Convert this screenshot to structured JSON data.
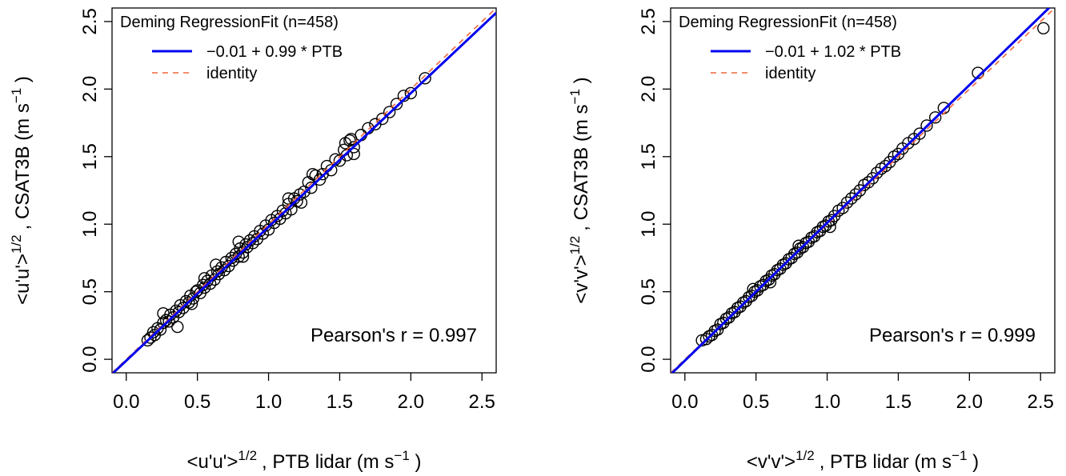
{
  "colors": {
    "fit": "#0000ee",
    "identity": "#f0663a",
    "points": "#000000"
  },
  "chart_data": [
    {
      "type": "scatter",
      "id": "uu",
      "xlabel": {
        "prefix": "<u'u'>",
        "sup": "1/2",
        "mid": ", PTB lidar (m s",
        "unit_sup": "−1",
        "suffix": " )"
      },
      "ylabel": {
        "prefix": "<u'u'>",
        "sup": "1/2",
        "mid": ", CSAT3B (m s",
        "unit_sup": "−1",
        "suffix": " )"
      },
      "xlim": [
        -0.1,
        2.6
      ],
      "ylim": [
        -0.1,
        2.6
      ],
      "xticks": [
        "0.0",
        "0.5",
        "1.0",
        "1.5",
        "2.0",
        "2.5"
      ],
      "yticks": [
        "0.0",
        "0.5",
        "1.0",
        "1.5",
        "2.0",
        "2.5"
      ],
      "legend": {
        "title": "Deming RegressionFit (n=458)",
        "fit_label": "−0.01 + 0.99 * PTB",
        "identity_label": "identity",
        "placement": "top-left"
      },
      "annotation": "Pearson's r = 0.997",
      "fit": {
        "intercept": -0.01,
        "slope": 0.99
      },
      "n": 458,
      "x": [
        0.15,
        0.17,
        0.19,
        0.2,
        0.22,
        0.24,
        0.26,
        0.28,
        0.3,
        0.31,
        0.33,
        0.35,
        0.37,
        0.38,
        0.4,
        0.42,
        0.44,
        0.45,
        0.47,
        0.49,
        0.5,
        0.52,
        0.54,
        0.55,
        0.57,
        0.59,
        0.6,
        0.62,
        0.64,
        0.65,
        0.67,
        0.69,
        0.7,
        0.72,
        0.74,
        0.75,
        0.77,
        0.79,
        0.8,
        0.82,
        0.84,
        0.85,
        0.87,
        0.89,
        0.9,
        0.92,
        0.94,
        0.96,
        0.98,
        1.0,
        1.02,
        1.04,
        1.06,
        1.08,
        1.1,
        1.12,
        1.14,
        1.16,
        1.18,
        1.2,
        1.22,
        1.25,
        1.28,
        1.3,
        1.33,
        1.36,
        1.38,
        1.41,
        1.44,
        1.47,
        1.5,
        1.53,
        1.55,
        1.57,
        1.6,
        1.65,
        1.7,
        1.75,
        1.8,
        1.85,
        1.9,
        1.95,
        2.0,
        2.1,
        0.36,
        0.26,
        0.46,
        0.55,
        0.63,
        0.79,
        0.82,
        1.14,
        1.23,
        1.31,
        1.58,
        1.6,
        1.54
      ],
      "y": [
        0.14,
        0.16,
        0.2,
        0.18,
        0.23,
        0.22,
        0.27,
        0.29,
        0.28,
        0.33,
        0.31,
        0.36,
        0.35,
        0.4,
        0.38,
        0.43,
        0.42,
        0.47,
        0.45,
        0.5,
        0.51,
        0.49,
        0.55,
        0.53,
        0.58,
        0.56,
        0.62,
        0.59,
        0.65,
        0.63,
        0.68,
        0.66,
        0.72,
        0.69,
        0.75,
        0.73,
        0.78,
        0.76,
        0.82,
        0.79,
        0.85,
        0.83,
        0.88,
        0.86,
        0.91,
        0.89,
        0.95,
        0.93,
        0.99,
        0.96,
        1.03,
        1.01,
        1.06,
        1.04,
        1.1,
        1.08,
        1.15,
        1.11,
        1.19,
        1.17,
        1.22,
        1.24,
        1.31,
        1.27,
        1.36,
        1.33,
        1.37,
        1.43,
        1.4,
        1.48,
        1.47,
        1.55,
        1.51,
        1.62,
        1.57,
        1.66,
        1.71,
        1.74,
        1.78,
        1.83,
        1.89,
        1.95,
        1.97,
        2.08,
        0.24,
        0.34,
        0.41,
        0.6,
        0.7,
        0.87,
        0.76,
        1.19,
        1.16,
        1.37,
        1.63,
        1.52,
        1.6
      ]
    },
    {
      "type": "scatter",
      "id": "vv",
      "xlabel": {
        "prefix": "<v'v'>",
        "sup": "1/2",
        "mid": ", PTB lidar (m s",
        "unit_sup": "−1",
        "suffix": " )"
      },
      "ylabel": {
        "prefix": "<v'v'>",
        "sup": "1/2",
        "mid": ", CSAT3B (m s",
        "unit_sup": "−1",
        "suffix": " )"
      },
      "xlim": [
        -0.1,
        2.6
      ],
      "ylim": [
        -0.1,
        2.6
      ],
      "xticks": [
        "0.0",
        "0.5",
        "1.0",
        "1.5",
        "2.0",
        "2.5"
      ],
      "yticks": [
        "0.0",
        "0.5",
        "1.0",
        "1.5",
        "2.0",
        "2.5"
      ],
      "legend": {
        "title": "Deming RegressionFit (n=458)",
        "fit_label": "−0.01 + 1.02 * PTB",
        "identity_label": "identity",
        "placement": "top-left"
      },
      "annotation": "Pearson's r = 0.999",
      "fit": {
        "intercept": -0.01,
        "slope": 1.02
      },
      "n": 458,
      "x": [
        0.12,
        0.15,
        0.17,
        0.19,
        0.21,
        0.23,
        0.25,
        0.27,
        0.29,
        0.31,
        0.33,
        0.35,
        0.37,
        0.39,
        0.41,
        0.43,
        0.45,
        0.47,
        0.49,
        0.51,
        0.53,
        0.55,
        0.57,
        0.59,
        0.61,
        0.63,
        0.65,
        0.67,
        0.69,
        0.71,
        0.73,
        0.75,
        0.77,
        0.79,
        0.81,
        0.83,
        0.85,
        0.87,
        0.89,
        0.91,
        0.93,
        0.95,
        0.97,
        0.99,
        1.01,
        1.03,
        1.05,
        1.08,
        1.11,
        1.14,
        1.17,
        1.2,
        1.23,
        1.26,
        1.29,
        1.32,
        1.35,
        1.38,
        1.41,
        1.44,
        1.47,
        1.5,
        1.53,
        1.57,
        1.61,
        1.65,
        1.7,
        1.76,
        1.82,
        2.06,
        2.52,
        0.8,
        1.02,
        0.48,
        0.6
      ],
      "y": [
        0.14,
        0.15,
        0.17,
        0.18,
        0.21,
        0.22,
        0.26,
        0.27,
        0.3,
        0.31,
        0.34,
        0.35,
        0.38,
        0.39,
        0.42,
        0.43,
        0.46,
        0.47,
        0.5,
        0.51,
        0.54,
        0.55,
        0.58,
        0.59,
        0.62,
        0.63,
        0.66,
        0.67,
        0.7,
        0.71,
        0.74,
        0.75,
        0.78,
        0.79,
        0.82,
        0.83,
        0.86,
        0.87,
        0.9,
        0.91,
        0.94,
        0.95,
        0.98,
        0.99,
        1.02,
        1.03,
        1.06,
        1.1,
        1.12,
        1.16,
        1.19,
        1.22,
        1.25,
        1.29,
        1.31,
        1.34,
        1.38,
        1.41,
        1.43,
        1.46,
        1.5,
        1.52,
        1.56,
        1.6,
        1.63,
        1.67,
        1.73,
        1.79,
        1.86,
        2.12,
        2.45,
        0.84,
        0.98,
        0.52,
        0.57
      ]
    }
  ]
}
